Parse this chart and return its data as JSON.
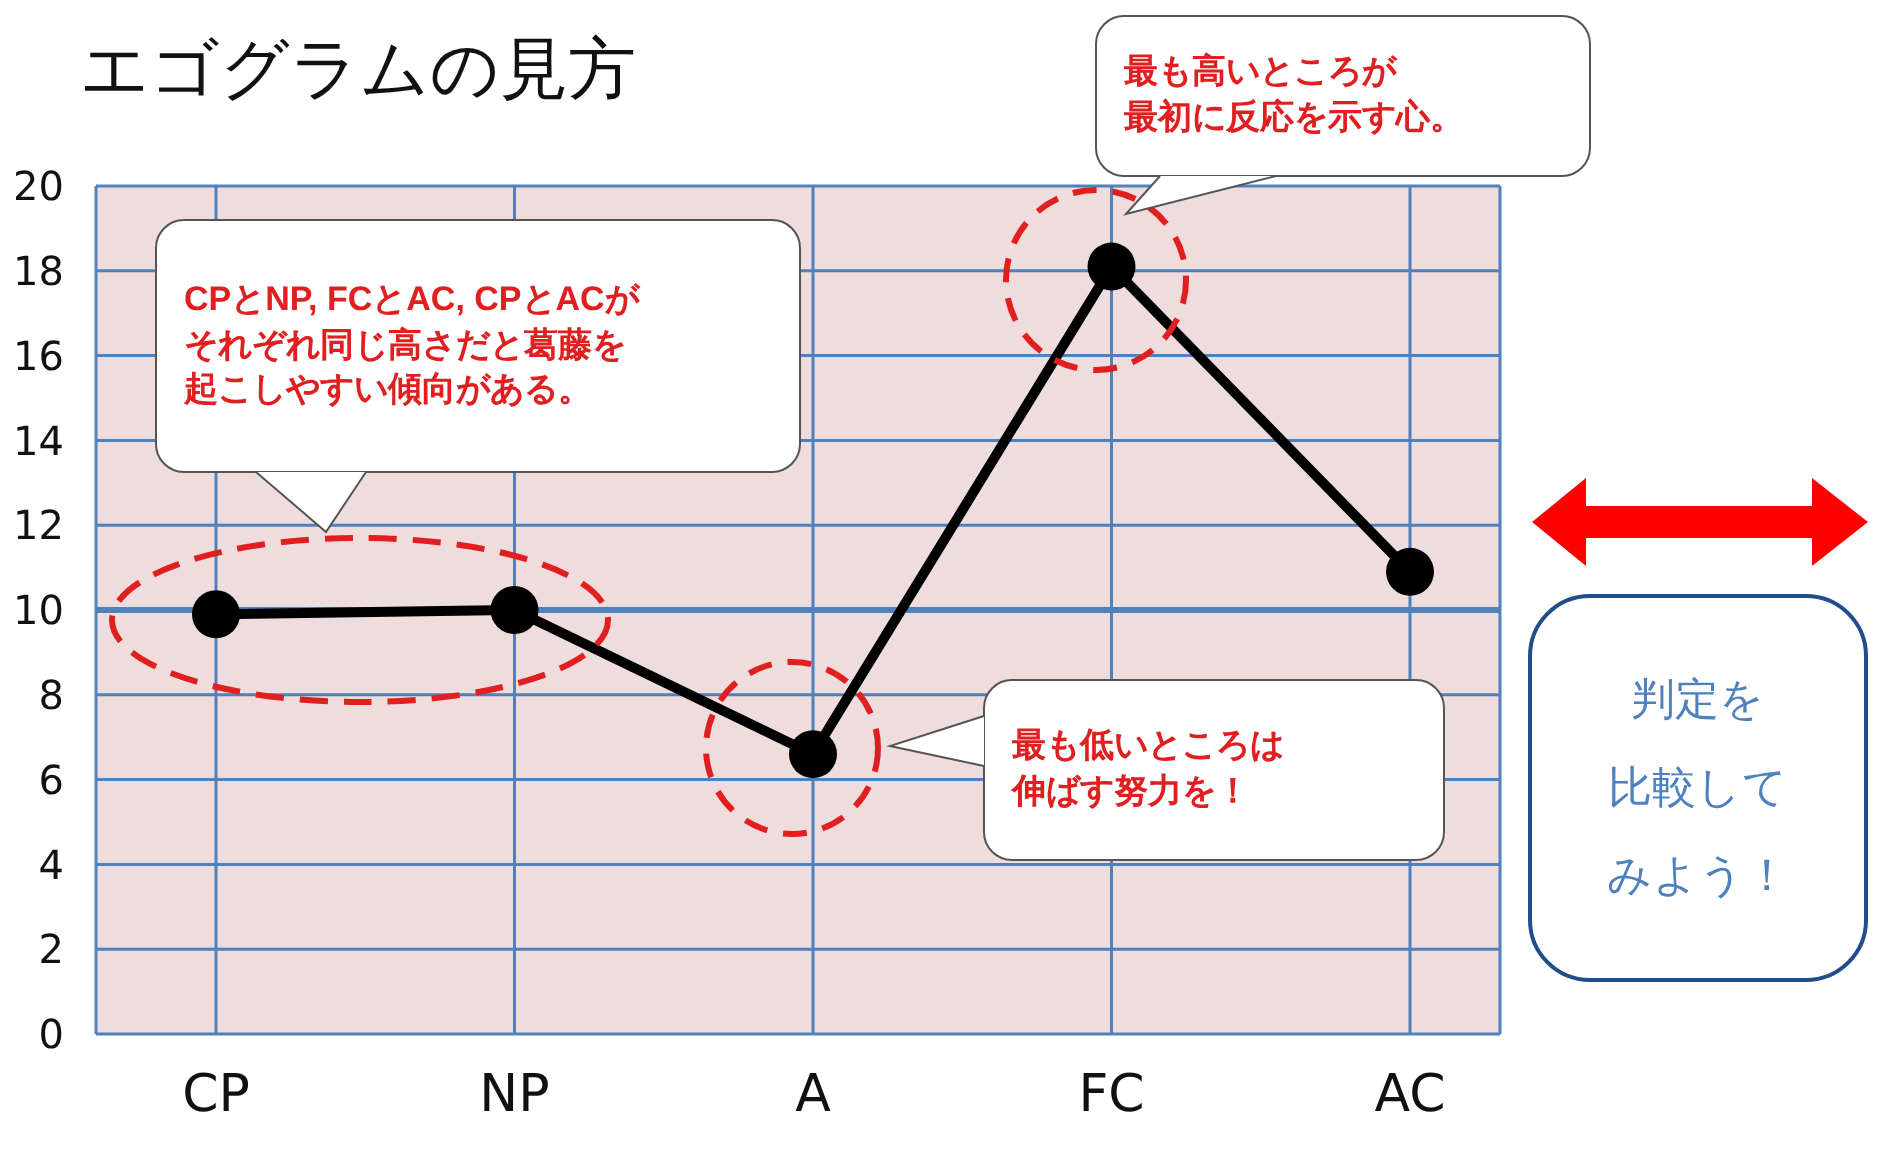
{
  "chart_data": {
    "type": "line",
    "title": "エゴグラムの見方",
    "categories": [
      "CP",
      "NP",
      "A",
      "FC",
      "AC"
    ],
    "series": [
      {
        "color": "#000000",
        "values": [
          9.9,
          10,
          6.6,
          18.1,
          10.9
        ]
      }
    ],
    "ylim": [
      0,
      20
    ],
    "yticks": [
      0,
      2,
      4,
      6,
      8,
      10,
      12,
      14,
      16,
      18,
      20
    ],
    "grid": true,
    "marker": "circle",
    "line_style": "solid",
    "legend": false,
    "ref_lines": [
      {
        "axis": "y",
        "value": 10,
        "color": "#4f81bd"
      }
    ],
    "annotations": [
      "CPとNP, FCとAC, CPとACがそれぞれ同じ高さだと葛藤を起こしやすい傾向がある。",
      "最も高いところが最初に反応を示す心。",
      "最も低いところは伸ばす努力を！",
      "判定を比較してみよう！"
    ]
  }
}
